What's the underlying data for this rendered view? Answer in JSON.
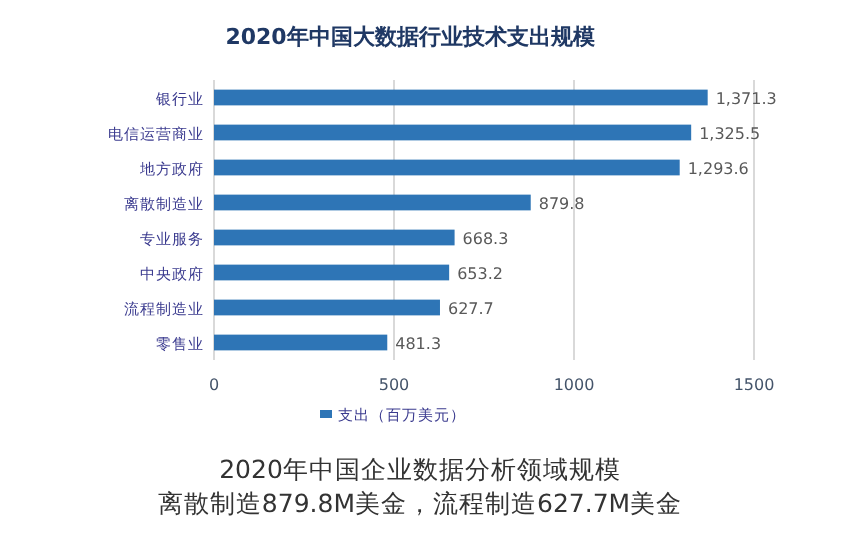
{
  "chart_data": {
    "type": "bar",
    "orientation": "horizontal",
    "title": "2020年中国大数据行业技术支出规模",
    "categories": [
      "银行业",
      "电信运营商业",
      "地方政府",
      "离散制造业",
      "专业服务",
      "中央政府",
      "流程制造业",
      "零售业"
    ],
    "series": [
      {
        "name": "支出（百万美元）",
        "color": "#2e75b6",
        "values": [
          1371.3,
          1325.5,
          1293.6,
          879.8,
          668.3,
          653.2,
          627.7,
          481.3
        ],
        "value_labels": [
          "1,371.3",
          "1,325.5",
          "1,293.6",
          "879.8",
          "668.3",
          "653.2",
          "627.7",
          "481.3"
        ]
      }
    ],
    "xlim": [
      0,
      1500
    ],
    "xticks": [
      0,
      500,
      1000,
      1500
    ],
    "grid": "x",
    "legend": "bottom",
    "annotations": [
      "2020年中国企业数据分析领域规模",
      "离散制造879.8M美金，流程制造627.7M美金"
    ]
  }
}
